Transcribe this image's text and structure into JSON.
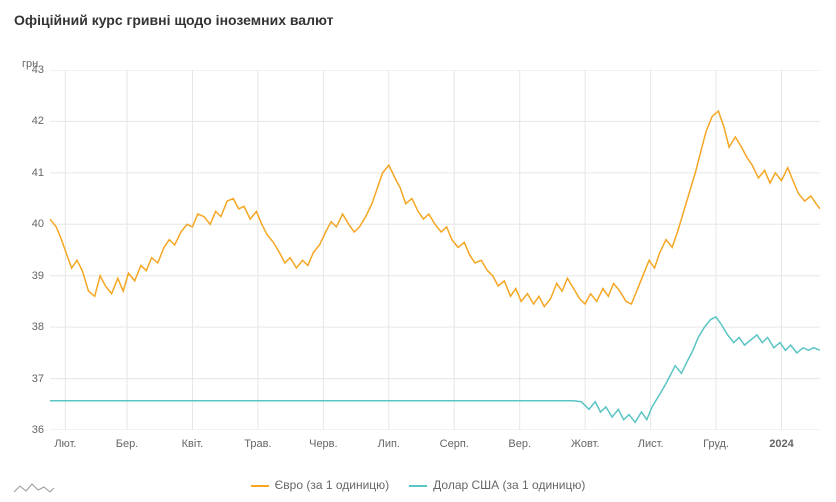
{
  "title": "Офіційний курс гривні щодо іноземних валют",
  "ylabel": "грн",
  "chart": {
    "type": "line",
    "background_color": "#ffffff",
    "grid_color": "#e6e6e6",
    "axis_color": "#cccccc",
    "text_color": "#666666",
    "title_fontsize": 14,
    "label_fontsize": 11,
    "ylim": [
      36,
      43
    ],
    "ytick_step": 1,
    "yticks": [
      36,
      37,
      38,
      39,
      40,
      41,
      42,
      43
    ],
    "xticks": [
      {
        "pos": 0.02,
        "label": "Лют."
      },
      {
        "pos": 0.1,
        "label": "Бер."
      },
      {
        "pos": 0.185,
        "label": "Квіт."
      },
      {
        "pos": 0.27,
        "label": "Трав."
      },
      {
        "pos": 0.355,
        "label": "Черв."
      },
      {
        "pos": 0.44,
        "label": "Лип."
      },
      {
        "pos": 0.525,
        "label": "Серп."
      },
      {
        "pos": 0.61,
        "label": "Вер."
      },
      {
        "pos": 0.695,
        "label": "Жовт."
      },
      {
        "pos": 0.78,
        "label": "Лист."
      },
      {
        "pos": 0.865,
        "label": "Груд."
      },
      {
        "pos": 0.95,
        "label": "2024",
        "bold": true
      }
    ],
    "series": [
      {
        "name": "Євро (за 1 одиницю)",
        "color": "#f5a623",
        "line_width": 1.5,
        "data": [
          [
            0.0,
            40.1
          ],
          [
            0.008,
            39.95
          ],
          [
            0.015,
            39.7
          ],
          [
            0.022,
            39.4
          ],
          [
            0.028,
            39.15
          ],
          [
            0.035,
            39.3
          ],
          [
            0.042,
            39.1
          ],
          [
            0.05,
            38.7
          ],
          [
            0.058,
            38.6
          ],
          [
            0.065,
            39.0
          ],
          [
            0.072,
            38.8
          ],
          [
            0.08,
            38.65
          ],
          [
            0.088,
            38.95
          ],
          [
            0.095,
            38.7
          ],
          [
            0.102,
            39.05
          ],
          [
            0.11,
            38.9
          ],
          [
            0.118,
            39.2
          ],
          [
            0.125,
            39.1
          ],
          [
            0.132,
            39.35
          ],
          [
            0.14,
            39.25
          ],
          [
            0.148,
            39.55
          ],
          [
            0.155,
            39.7
          ],
          [
            0.162,
            39.6
          ],
          [
            0.17,
            39.85
          ],
          [
            0.178,
            40.0
          ],
          [
            0.185,
            39.95
          ],
          [
            0.192,
            40.2
          ],
          [
            0.2,
            40.15
          ],
          [
            0.208,
            40.0
          ],
          [
            0.215,
            40.25
          ],
          [
            0.222,
            40.15
          ],
          [
            0.23,
            40.45
          ],
          [
            0.238,
            40.5
          ],
          [
            0.245,
            40.3
          ],
          [
            0.252,
            40.35
          ],
          [
            0.26,
            40.1
          ],
          [
            0.268,
            40.25
          ],
          [
            0.275,
            40.0
          ],
          [
            0.282,
            39.8
          ],
          [
            0.29,
            39.65
          ],
          [
            0.298,
            39.45
          ],
          [
            0.305,
            39.25
          ],
          [
            0.312,
            39.35
          ],
          [
            0.32,
            39.15
          ],
          [
            0.328,
            39.3
          ],
          [
            0.335,
            39.2
          ],
          [
            0.342,
            39.45
          ],
          [
            0.35,
            39.6
          ],
          [
            0.358,
            39.85
          ],
          [
            0.365,
            40.05
          ],
          [
            0.372,
            39.95
          ],
          [
            0.38,
            40.2
          ],
          [
            0.388,
            40.0
          ],
          [
            0.395,
            39.85
          ],
          [
            0.402,
            39.95
          ],
          [
            0.41,
            40.15
          ],
          [
            0.418,
            40.4
          ],
          [
            0.425,
            40.7
          ],
          [
            0.432,
            41.0
          ],
          [
            0.44,
            41.15
          ],
          [
            0.448,
            40.9
          ],
          [
            0.455,
            40.7
          ],
          [
            0.462,
            40.4
          ],
          [
            0.47,
            40.5
          ],
          [
            0.478,
            40.25
          ],
          [
            0.485,
            40.1
          ],
          [
            0.492,
            40.2
          ],
          [
            0.5,
            40.0
          ],
          [
            0.508,
            39.85
          ],
          [
            0.515,
            39.95
          ],
          [
            0.522,
            39.7
          ],
          [
            0.53,
            39.55
          ],
          [
            0.538,
            39.65
          ],
          [
            0.545,
            39.4
          ],
          [
            0.552,
            39.25
          ],
          [
            0.56,
            39.3
          ],
          [
            0.568,
            39.1
          ],
          [
            0.575,
            39.0
          ],
          [
            0.582,
            38.8
          ],
          [
            0.59,
            38.9
          ],
          [
            0.598,
            38.6
          ],
          [
            0.605,
            38.75
          ],
          [
            0.612,
            38.5
          ],
          [
            0.62,
            38.65
          ],
          [
            0.628,
            38.45
          ],
          [
            0.635,
            38.6
          ],
          [
            0.642,
            38.4
          ],
          [
            0.65,
            38.55
          ],
          [
            0.658,
            38.85
          ],
          [
            0.665,
            38.7
          ],
          [
            0.672,
            38.95
          ],
          [
            0.68,
            38.75
          ],
          [
            0.688,
            38.55
          ],
          [
            0.695,
            38.45
          ],
          [
            0.702,
            38.65
          ],
          [
            0.71,
            38.5
          ],
          [
            0.718,
            38.75
          ],
          [
            0.725,
            38.6
          ],
          [
            0.732,
            38.85
          ],
          [
            0.74,
            38.7
          ],
          [
            0.748,
            38.5
          ],
          [
            0.755,
            38.45
          ],
          [
            0.762,
            38.7
          ],
          [
            0.77,
            39.0
          ],
          [
            0.778,
            39.3
          ],
          [
            0.785,
            39.15
          ],
          [
            0.792,
            39.45
          ],
          [
            0.8,
            39.7
          ],
          [
            0.808,
            39.55
          ],
          [
            0.815,
            39.85
          ],
          [
            0.822,
            40.2
          ],
          [
            0.83,
            40.6
          ],
          [
            0.838,
            41.0
          ],
          [
            0.845,
            41.4
          ],
          [
            0.852,
            41.8
          ],
          [
            0.86,
            42.1
          ],
          [
            0.868,
            42.2
          ],
          [
            0.875,
            41.9
          ],
          [
            0.882,
            41.5
          ],
          [
            0.89,
            41.7
          ],
          [
            0.898,
            41.5
          ],
          [
            0.905,
            41.3
          ],
          [
            0.912,
            41.15
          ],
          [
            0.92,
            40.9
          ],
          [
            0.928,
            41.05
          ],
          [
            0.935,
            40.8
          ],
          [
            0.942,
            41.0
          ],
          [
            0.95,
            40.85
          ],
          [
            0.958,
            41.1
          ],
          [
            0.965,
            40.85
          ],
          [
            0.972,
            40.6
          ],
          [
            0.98,
            40.45
          ],
          [
            0.988,
            40.55
          ],
          [
            0.995,
            40.4
          ],
          [
            1.0,
            40.3
          ]
        ]
      },
      {
        "name": "Долар США (за 1 одиницю)",
        "color": "#5bc4c4",
        "line_width": 1.5,
        "data": [
          [
            0.0,
            36.57
          ],
          [
            0.05,
            36.57
          ],
          [
            0.1,
            36.57
          ],
          [
            0.15,
            36.57
          ],
          [
            0.2,
            36.57
          ],
          [
            0.25,
            36.57
          ],
          [
            0.3,
            36.57
          ],
          [
            0.35,
            36.57
          ],
          [
            0.4,
            36.57
          ],
          [
            0.45,
            36.57
          ],
          [
            0.5,
            36.57
          ],
          [
            0.55,
            36.57
          ],
          [
            0.6,
            36.57
          ],
          [
            0.65,
            36.57
          ],
          [
            0.68,
            36.57
          ],
          [
            0.69,
            36.55
          ],
          [
            0.7,
            36.4
          ],
          [
            0.708,
            36.55
          ],
          [
            0.715,
            36.35
          ],
          [
            0.722,
            36.45
          ],
          [
            0.73,
            36.25
          ],
          [
            0.738,
            36.4
          ],
          [
            0.745,
            36.2
          ],
          [
            0.752,
            36.3
          ],
          [
            0.76,
            36.15
          ],
          [
            0.768,
            36.35
          ],
          [
            0.775,
            36.2
          ],
          [
            0.782,
            36.45
          ],
          [
            0.79,
            36.65
          ],
          [
            0.798,
            36.85
          ],
          [
            0.805,
            37.05
          ],
          [
            0.812,
            37.25
          ],
          [
            0.82,
            37.1
          ],
          [
            0.828,
            37.35
          ],
          [
            0.835,
            37.55
          ],
          [
            0.842,
            37.8
          ],
          [
            0.85,
            38.0
          ],
          [
            0.858,
            38.15
          ],
          [
            0.865,
            38.2
          ],
          [
            0.872,
            38.05
          ],
          [
            0.88,
            37.85
          ],
          [
            0.888,
            37.7
          ],
          [
            0.895,
            37.8
          ],
          [
            0.902,
            37.65
          ],
          [
            0.91,
            37.75
          ],
          [
            0.918,
            37.85
          ],
          [
            0.925,
            37.7
          ],
          [
            0.932,
            37.8
          ],
          [
            0.94,
            37.6
          ],
          [
            0.948,
            37.7
          ],
          [
            0.955,
            37.55
          ],
          [
            0.962,
            37.65
          ],
          [
            0.97,
            37.5
          ],
          [
            0.978,
            37.6
          ],
          [
            0.985,
            37.55
          ],
          [
            0.992,
            37.6
          ],
          [
            1.0,
            37.55
          ]
        ]
      }
    ]
  },
  "legend": {
    "items": [
      {
        "label": "Євро (за 1 одиницю)",
        "color": "#f5a623"
      },
      {
        "label": "Долар США (за 1 одиницю)",
        "color": "#5bc4c4"
      }
    ]
  }
}
